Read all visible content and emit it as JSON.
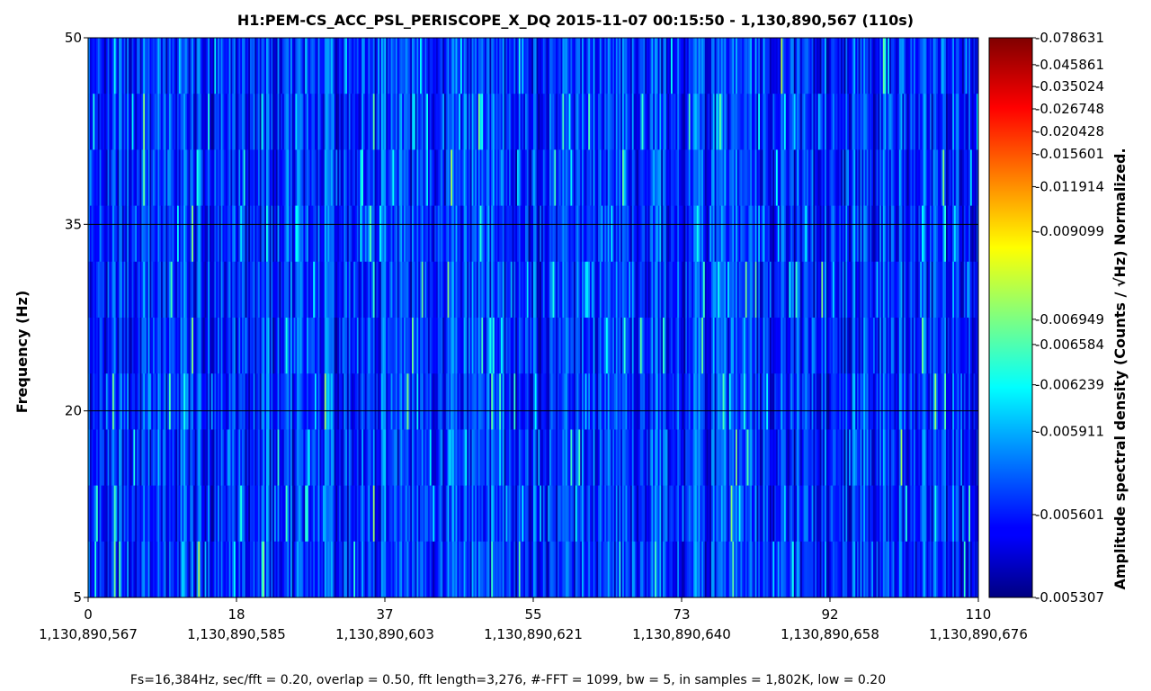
{
  "chart_data": {
    "type": "heatmap",
    "title": "H1:PEM-CS_ACC_PSL_PERISCOPE_X_DQ 2015-11-07 00:15:50 - 1,130,890,567 (110s)",
    "ylabel": "Frequency (Hz)",
    "colorbar_label": "Amplitude spectral density (Counts / √Hz) Normalized.",
    "footer": "Fs=16,384Hz, sec/fft = 0.20, overlap = 0.50, fft length=3,276, #-FFT = 1099, bw = 5, in samples = 1,802K, low = 0.20",
    "xlim": [
      0,
      110
    ],
    "ylim": [
      5,
      50
    ],
    "x_ticks": [
      "0",
      "18",
      "37",
      "55",
      "73",
      "92",
      "110"
    ],
    "x_tick_values": [
      0,
      18.333,
      36.667,
      55,
      73.333,
      91.667,
      110
    ],
    "x_gps_labels": [
      "1,130,890,567",
      "1,130,890,585",
      "1,130,890,603",
      "1,130,890,621",
      "1,130,890,640",
      "1,130,890,658",
      "1,130,890,676"
    ],
    "y_ticks": [
      "5",
      "20",
      "35",
      "50"
    ],
    "y_tick_values": [
      5,
      20,
      35,
      50
    ],
    "grid": "horizontal",
    "colormap": "jet",
    "colorbar_ticks": [
      "0.078631",
      "0.045861",
      "0.035024",
      "0.026748",
      "0.020428",
      "0.015601",
      "0.011914",
      "0.009099",
      "0.006949",
      "0.006584",
      "0.006239",
      "0.005911",
      "0.005601",
      "0.005307"
    ],
    "colorbar_tick_values": [
      0.078631,
      0.045861,
      0.035024,
      0.026748,
      0.020428,
      0.015601,
      0.011914,
      0.009099,
      0.006949,
      0.006584,
      0.006239,
      0.005911,
      0.005601,
      0.005307
    ],
    "colorbar_tick_fractions": [
      1.0,
      0.952,
      0.913,
      0.873,
      0.833,
      0.793,
      0.734,
      0.654,
      0.497,
      0.452,
      0.38,
      0.297,
      0.148,
      0.0
    ],
    "colorbar_range": [
      0.005307,
      0.078631
    ]
  }
}
